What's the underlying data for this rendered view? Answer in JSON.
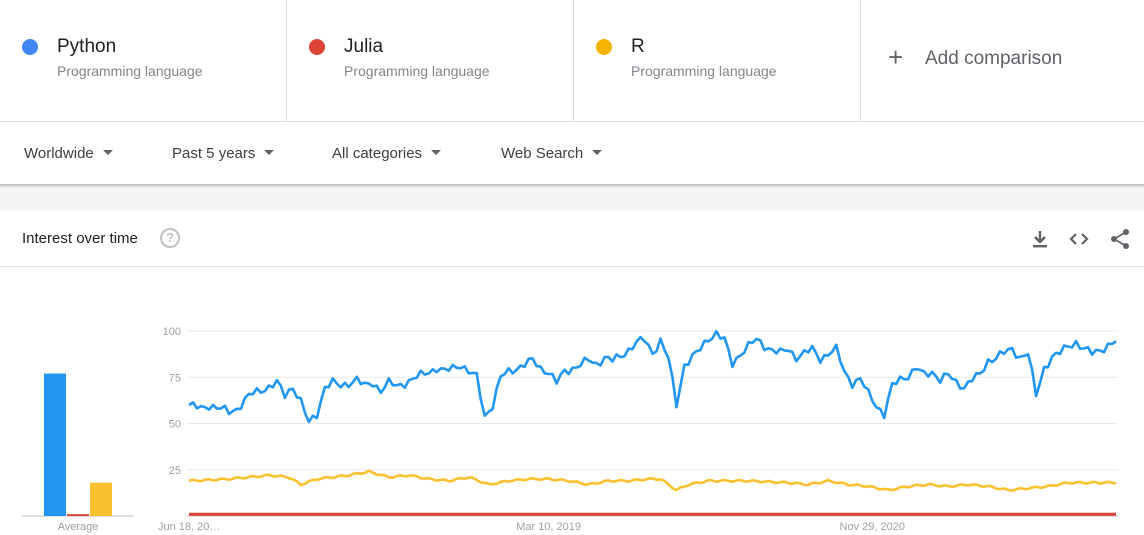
{
  "terms": [
    {
      "name": "Python",
      "type": "Programming language",
      "color": "#4285f4"
    },
    {
      "name": "Julia",
      "type": "Programming language",
      "color": "#db4437"
    },
    {
      "name": "R",
      "type": "Programming language",
      "color": "#f4b400"
    }
  ],
  "add_comparison": {
    "icon": "plus-icon",
    "label": "Add comparison"
  },
  "filters": {
    "region": "Worldwide",
    "time": "Past 5 years",
    "category": "All categories",
    "search_type": "Web Search"
  },
  "card": {
    "title": "Interest over time",
    "help_icon": "?",
    "tools": [
      "download-icon",
      "embed-icon",
      "share-icon"
    ]
  },
  "chart_data": {
    "type": "line",
    "title": "",
    "xlabel": "",
    "ylabel": "",
    "ylim": [
      0,
      100
    ],
    "yticks": [
      25,
      50,
      75,
      100
    ],
    "grid": true,
    "x_tick_labels": [
      {
        "label": "Jun 18, 20…",
        "index": 0
      },
      {
        "label": "Mar 10, 2019",
        "index": 90
      },
      {
        "label": "Nov 29, 2020",
        "index": 171
      }
    ],
    "average": {
      "label": "Average",
      "values": [
        {
          "name": "Python",
          "value": 77
        },
        {
          "name": "Julia",
          "value": 1
        },
        {
          "name": "R",
          "value": 18
        }
      ]
    },
    "series": [
      {
        "name": "Python",
        "color": "#2196f3",
        "keypoints": [
          [
            0,
            60
          ],
          [
            3,
            58
          ],
          [
            5,
            60
          ],
          [
            8,
            58
          ],
          [
            10,
            56
          ],
          [
            12,
            58
          ],
          [
            15,
            65
          ],
          [
            18,
            68
          ],
          [
            20,
            70
          ],
          [
            22,
            72
          ],
          [
            24,
            65
          ],
          [
            26,
            70
          ],
          [
            28,
            62
          ],
          [
            30,
            50
          ],
          [
            32,
            55
          ],
          [
            34,
            70
          ],
          [
            36,
            72
          ],
          [
            38,
            70
          ],
          [
            40,
            72
          ],
          [
            42,
            74
          ],
          [
            44,
            70
          ],
          [
            46,
            72
          ],
          [
            48,
            68
          ],
          [
            50,
            72
          ],
          [
            52,
            70
          ],
          [
            54,
            72
          ],
          [
            56,
            74
          ],
          [
            58,
            76
          ],
          [
            60,
            78
          ],
          [
            62,
            80
          ],
          [
            64,
            78
          ],
          [
            66,
            80
          ],
          [
            68,
            82
          ],
          [
            70,
            78
          ],
          [
            72,
            75
          ],
          [
            74,
            54
          ],
          [
            76,
            60
          ],
          [
            78,
            75
          ],
          [
            80,
            78
          ],
          [
            82,
            80
          ],
          [
            84,
            82
          ],
          [
            86,
            84
          ],
          [
            88,
            80
          ],
          [
            90,
            78
          ],
          [
            92,
            72
          ],
          [
            94,
            78
          ],
          [
            96,
            80
          ],
          [
            98,
            82
          ],
          [
            100,
            84
          ],
          [
            102,
            82
          ],
          [
            104,
            86
          ],
          [
            106,
            84
          ],
          [
            108,
            86
          ],
          [
            110,
            90
          ],
          [
            112,
            94
          ],
          [
            114,
            95
          ],
          [
            116,
            88
          ],
          [
            118,
            95
          ],
          [
            120,
            85
          ],
          [
            122,
            60
          ],
          [
            124,
            82
          ],
          [
            126,
            86
          ],
          [
            128,
            90
          ],
          [
            130,
            96
          ],
          [
            132,
            99
          ],
          [
            134,
            95
          ],
          [
            136,
            82
          ],
          [
            138,
            88
          ],
          [
            140,
            92
          ],
          [
            142,
            95
          ],
          [
            144,
            92
          ],
          [
            146,
            90
          ],
          [
            148,
            88
          ],
          [
            150,
            90
          ],
          [
            152,
            86
          ],
          [
            154,
            88
          ],
          [
            156,
            90
          ],
          [
            158,
            85
          ],
          [
            160,
            88
          ],
          [
            162,
            90
          ],
          [
            164,
            78
          ],
          [
            166,
            72
          ],
          [
            168,
            74
          ],
          [
            170,
            66
          ],
          [
            172,
            60
          ],
          [
            174,
            55
          ],
          [
            176,
            70
          ],
          [
            178,
            74
          ],
          [
            180,
            76
          ],
          [
            182,
            80
          ],
          [
            184,
            76
          ],
          [
            186,
            78
          ],
          [
            188,
            74
          ],
          [
            190,
            76
          ],
          [
            192,
            72
          ],
          [
            194,
            70
          ],
          [
            196,
            74
          ],
          [
            198,
            76
          ],
          [
            200,
            84
          ],
          [
            202,
            86
          ],
          [
            204,
            88
          ],
          [
            206,
            90
          ],
          [
            208,
            86
          ],
          [
            210,
            88
          ],
          [
            212,
            65
          ],
          [
            214,
            80
          ],
          [
            216,
            86
          ],
          [
            218,
            88
          ],
          [
            220,
            92
          ],
          [
            222,
            94
          ],
          [
            224,
            90
          ],
          [
            226,
            88
          ],
          [
            228,
            90
          ],
          [
            230,
            92
          ],
          [
            232,
            94
          ]
        ]
      },
      {
        "name": "Julia",
        "color": "#db4437",
        "keypoints": [
          [
            0,
            1
          ],
          [
            232,
            1
          ]
        ]
      },
      {
        "name": "R",
        "color": "#fbc02d",
        "keypoints": [
          [
            0,
            19
          ],
          [
            10,
            20
          ],
          [
            20,
            22
          ],
          [
            25,
            21
          ],
          [
            28,
            17
          ],
          [
            32,
            20
          ],
          [
            40,
            22
          ],
          [
            45,
            24
          ],
          [
            50,
            21
          ],
          [
            55,
            22
          ],
          [
            60,
            20
          ],
          [
            65,
            19
          ],
          [
            70,
            21
          ],
          [
            75,
            17
          ],
          [
            80,
            19
          ],
          [
            85,
            20
          ],
          [
            90,
            20
          ],
          [
            95,
            19
          ],
          [
            100,
            17
          ],
          [
            105,
            19
          ],
          [
            110,
            19
          ],
          [
            115,
            20
          ],
          [
            118,
            20
          ],
          [
            120,
            17
          ],
          [
            122,
            14
          ],
          [
            125,
            17
          ],
          [
            130,
            19
          ],
          [
            140,
            19
          ],
          [
            150,
            18
          ],
          [
            155,
            17
          ],
          [
            160,
            19
          ],
          [
            165,
            17
          ],
          [
            170,
            16
          ],
          [
            175,
            14
          ],
          [
            180,
            16
          ],
          [
            185,
            17
          ],
          [
            190,
            16
          ],
          [
            195,
            17
          ],
          [
            200,
            16
          ],
          [
            205,
            14
          ],
          [
            210,
            15
          ],
          [
            215,
            16
          ],
          [
            220,
            18
          ],
          [
            225,
            18
          ],
          [
            232,
            18
          ]
        ]
      }
    ]
  }
}
